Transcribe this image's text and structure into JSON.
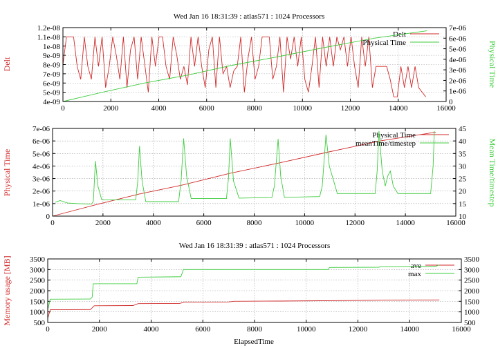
{
  "colors": {
    "series_red": "#d02828",
    "series_green": "#3ccc3c"
  },
  "titles": {
    "top": "Wed Jan 16 18:31:39 : atlas571 : 1024 Processors",
    "bottom": "Wed Jan 16 18:31:39 : atlas571 : 1024 Processors"
  },
  "chart_data": [
    {
      "type": "line",
      "title": "Wed Jan 16 18:31:39 : atlas571 : 1024 Processors",
      "ylabel": "Delt",
      "y2label": "Physical Time",
      "xlim": [
        0,
        16000
      ],
      "ylim": [
        4e-09,
        1.2e-08
      ],
      "y2lim": [
        0,
        7e-06
      ],
      "grid": true,
      "legend": "top-right",
      "xticks": [
        "0",
        "2000",
        "4000",
        "6000",
        "8000",
        "10000",
        "12000",
        "14000",
        "16000"
      ],
      "yticks": [
        "4e-09",
        "5e-09",
        "6e-09",
        "7e-09",
        "8e-09",
        "9e-09",
        "1e-08",
        "1.1e-08",
        "1.2e-08"
      ],
      "y2ticks": [
        "0",
        "1e-06",
        "2e-06",
        "3e-06",
        "4e-06",
        "5e-06",
        "6e-06",
        "7e-06"
      ],
      "series": [
        {
          "name": "Delt",
          "axis": "y",
          "color": "red",
          "x_range": [
            0,
            15150
          ],
          "scale": 1e-09,
          "values": [
            8,
            11,
            11,
            11,
            7.8,
            6.4,
            11,
            7.8,
            6.4,
            11,
            7.8,
            11,
            5.5,
            7.8,
            11,
            9,
            6.4,
            11,
            5.5,
            9.6,
            11,
            6.4,
            11,
            8,
            5,
            11,
            7.8,
            11,
            11,
            7.8,
            6.4,
            11,
            9,
            6.4,
            7.8,
            5.8,
            11,
            7.8,
            11,
            7.8,
            5.5,
            9.6,
            11,
            5.5,
            11,
            7,
            7.8,
            5.5,
            7.3,
            7.8,
            11,
            5,
            8.6,
            11,
            6.4,
            7.8,
            11,
            11,
            11,
            6.4,
            7.8,
            11,
            5,
            11,
            8.6,
            11,
            7.8,
            11,
            6.4,
            5,
            7.8,
            11,
            5.5,
            11,
            7.8,
            11,
            7.8,
            11,
            9.6,
            11,
            7.8,
            11,
            7.8,
            5.5,
            11,
            7.8,
            11,
            5.5,
            7.8,
            7.8,
            7.8,
            7.8,
            6.4,
            4.5,
            4.5,
            7.8,
            5.5,
            7.8,
            5.5,
            7.8,
            5.5,
            5,
            4.5
          ]
        },
        {
          "name": "Physical Time",
          "axis": "y2",
          "color": "green",
          "points": [
            [
              0,
              0
            ],
            [
              1700,
              9e-07
            ],
            [
              3400,
              1.75e-06
            ],
            [
              5200,
              2.5e-06
            ],
            [
              7000,
              3.4e-06
            ],
            [
              9000,
              4.25e-06
            ],
            [
              10900,
              5.1e-06
            ],
            [
              13000,
              6e-06
            ],
            [
              15200,
              6.7e-06
            ]
          ]
        }
      ]
    },
    {
      "type": "line",
      "ylabel": "Physical Time",
      "y2label": "Mean Time/timestep",
      "xlim": [
        0,
        16000
      ],
      "ylim": [
        0,
        7e-06
      ],
      "y2lim": [
        10,
        45
      ],
      "grid": true,
      "legend": "top-right",
      "xticks": [
        "0",
        "2000",
        "4000",
        "6000",
        "8000",
        "10000",
        "12000",
        "14000",
        "16000"
      ],
      "yticks": [
        "0",
        "1e-06",
        "2e-06",
        "3e-06",
        "4e-06",
        "5e-06",
        "6e-06",
        "7e-06"
      ],
      "y2ticks": [
        "10",
        "15",
        "20",
        "25",
        "30",
        "35",
        "40",
        "45"
      ],
      "series": [
        {
          "name": "Physical Time",
          "axis": "y",
          "color": "red",
          "points": [
            [
              0,
              0
            ],
            [
              1700,
              9e-07
            ],
            [
              3400,
              1.75e-06
            ],
            [
              5200,
              2.5e-06
            ],
            [
              7000,
              3.4e-06
            ],
            [
              9000,
              4.25e-06
            ],
            [
              10900,
              5.1e-06
            ],
            [
              13000,
              6e-06
            ],
            [
              15200,
              6.7e-06
            ]
          ]
        },
        {
          "name": "meanTime/timestep",
          "axis": "y2",
          "color": "green",
          "points": [
            [
              100,
              15.5
            ],
            [
              300,
              16.2
            ],
            [
              600,
              15.2
            ],
            [
              1000,
              15
            ],
            [
              1550,
              14.8
            ],
            [
              1620,
              16
            ],
            [
              1700,
              32
            ],
            [
              1800,
              22
            ],
            [
              1950,
              16.5
            ],
            [
              3300,
              16.5
            ],
            [
              3380,
              24
            ],
            [
              3450,
              38
            ],
            [
              3550,
              24
            ],
            [
              3700,
              15.8
            ],
            [
              5000,
              15.8
            ],
            [
              5100,
              24
            ],
            [
              5200,
              41
            ],
            [
              5320,
              26
            ],
            [
              5500,
              17
            ],
            [
              6900,
              17
            ],
            [
              6980,
              25
            ],
            [
              7050,
              41
            ],
            [
              7180,
              24
            ],
            [
              7400,
              17.2
            ],
            [
              8700,
              17.4
            ],
            [
              8800,
              22
            ],
            [
              8950,
              40.8
            ],
            [
              9050,
              26
            ],
            [
              9200,
              17.5
            ],
            [
              10600,
              17.8
            ],
            [
              10700,
              22
            ],
            [
              10850,
              42.5
            ],
            [
              10980,
              30
            ],
            [
              11300,
              19
            ],
            [
              12800,
              19
            ],
            [
              12880,
              28
            ],
            [
              12950,
              44
            ],
            [
              13080,
              28
            ],
            [
              13200,
              22
            ],
            [
              13300,
              26
            ],
            [
              13400,
              28
            ],
            [
              13520,
              22
            ],
            [
              13700,
              19
            ],
            [
              15000,
              19
            ],
            [
              15100,
              30
            ],
            [
              15150,
              44
            ]
          ]
        }
      ]
    },
    {
      "type": "line",
      "title": "Wed Jan 16 18:31:39 : atlas571 : 1024 Processors",
      "xlabel": "ElapsedTime",
      "ylabel": "Memory usage [MB]",
      "xlim": [
        0,
        16000
      ],
      "ylim": [
        500,
        3500
      ],
      "y2lim": [
        500,
        3500
      ],
      "grid": true,
      "legend": "top-right",
      "xticks": [
        "0",
        "2000",
        "4000",
        "6000",
        "8000",
        "10000",
        "12000",
        "14000",
        "16000"
      ],
      "yticks": [
        "500",
        "1000",
        "1500",
        "2000",
        "2500",
        "3000",
        "3500"
      ],
      "y2ticks": [
        "500",
        "1000",
        "1500",
        "2000",
        "2500",
        "3000",
        "3500"
      ],
      "series": [
        {
          "name": "ave",
          "axis": "y",
          "color": "red",
          "points": [
            [
              0,
              700
            ],
            [
              100,
              1100
            ],
            [
              1650,
              1110
            ],
            [
              1800,
              1290
            ],
            [
              3300,
              1300
            ],
            [
              3500,
              1390
            ],
            [
              5100,
              1400
            ],
            [
              5300,
              1460
            ],
            [
              7000,
              1470
            ],
            [
              7200,
              1500
            ],
            [
              9000,
              1510
            ],
            [
              10900,
              1530
            ],
            [
              13000,
              1550
            ],
            [
              15150,
              1560
            ]
          ]
        },
        {
          "name": "max",
          "axis": "y",
          "color": "green",
          "points": [
            [
              0,
              1100
            ],
            [
              100,
              1600
            ],
            [
              1650,
              1610
            ],
            [
              1720,
              1700
            ],
            [
              1760,
              2330
            ],
            [
              3450,
              2330
            ],
            [
              3500,
              2640
            ],
            [
              5150,
              2660
            ],
            [
              5250,
              3000
            ],
            [
              10850,
              3000
            ],
            [
              10900,
              3100
            ],
            [
              12800,
              3110
            ],
            [
              12900,
              3130
            ],
            [
              15000,
              3140
            ],
            [
              15100,
              3200
            ],
            [
              15150,
              3200
            ]
          ]
        }
      ]
    }
  ]
}
